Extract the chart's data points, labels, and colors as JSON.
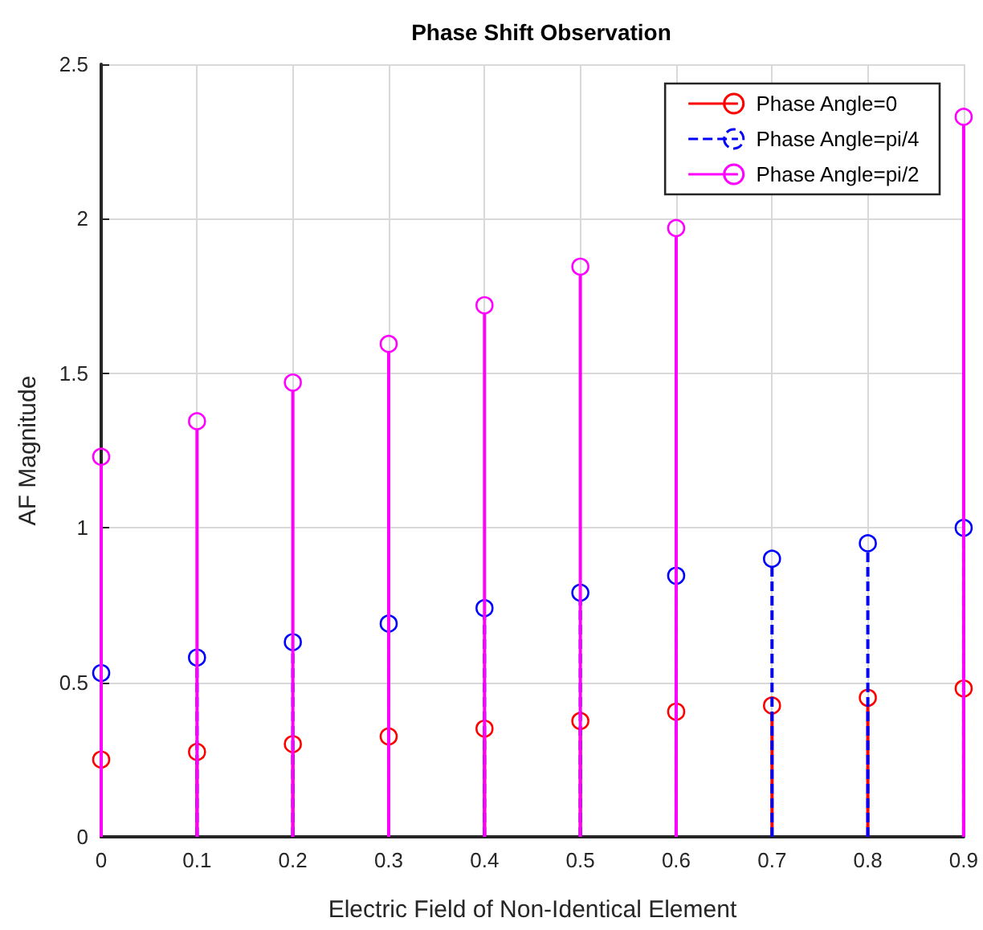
{
  "chart_data": {
    "type": "lollipop",
    "title": "Phase Shift Observation",
    "xlabel": "Electric Field of Non-Identical Element",
    "ylabel": "AF Magnitude",
    "x": [
      0,
      0.1,
      0.2,
      0.3,
      0.4,
      0.5,
      0.6,
      0.7,
      0.8,
      0.9
    ],
    "series": [
      {
        "name": "Phase Angle=0",
        "color": "#ff0000",
        "line_style": "solid",
        "values": [
          0.25,
          0.275,
          0.3,
          0.325,
          0.35,
          0.375,
          0.405,
          0.425,
          0.45,
          0.48
        ]
      },
      {
        "name": "Phase Angle=pi/4",
        "color": "#0000ff",
        "line_style": "dashed",
        "values": [
          0.53,
          0.58,
          0.63,
          0.69,
          0.74,
          0.79,
          0.845,
          0.9,
          0.95,
          1.0
        ]
      },
      {
        "name": "Phase Angle=pi/2",
        "color": "#ff00ff",
        "line_style": "solid",
        "values": [
          1.23,
          1.345,
          1.47,
          1.595,
          1.72,
          1.845,
          1.97,
          null,
          null,
          2.33
        ]
      }
    ],
    "xlim": [
      0,
      0.9
    ],
    "xticks": [
      0,
      0.1,
      0.2,
      0.3,
      0.4,
      0.5,
      0.6,
      0.7,
      0.8,
      0.9
    ],
    "ylim": [
      0,
      2.5
    ],
    "yticks": [
      0,
      0.5,
      1,
      1.5,
      2,
      2.5
    ],
    "grid": true,
    "legend": "top right",
    "marker": "circle"
  }
}
